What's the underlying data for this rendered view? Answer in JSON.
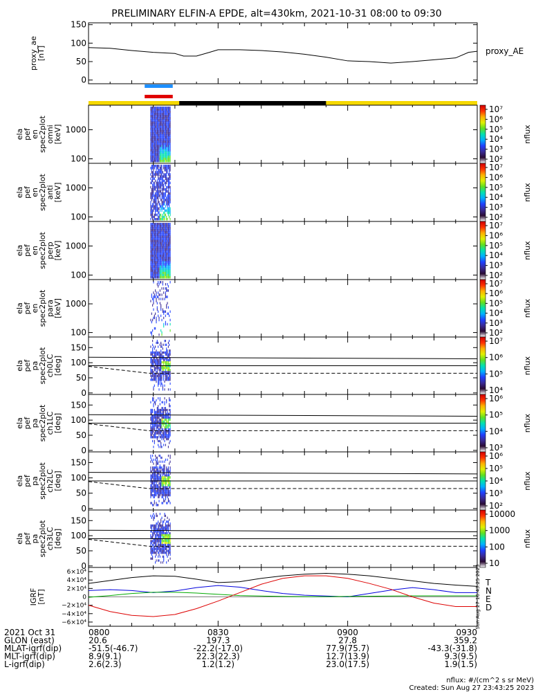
{
  "title": "PRELIMINARY ELFIN-A EPDE, alt=430km, 2021-10-31 08:00 to 09:30",
  "colors": {
    "bar_day": "#f5d800",
    "bar_night": "#000000",
    "marker_blue": "#1e8fff",
    "marker_red": "#e00000",
    "grf_T": "#000000",
    "grf_N": "#0000dd",
    "grf_E": "#00aa00",
    "grf_D": "#dd0000"
  },
  "colorbar_gradient": [
    "#ffffff",
    "#2a0a33",
    "#3a2a96",
    "#2040ff",
    "#00b0ff",
    "#00e0b0",
    "#60e020",
    "#e0f000",
    "#ffb000",
    "#ff3000",
    "#d00000"
  ],
  "chart_data": [
    {
      "type": "line",
      "panel": "proxy_ae",
      "ylabel": "proxy_ae\n[nT]",
      "legend": "proxy_AE",
      "ylim": [
        -10,
        155
      ],
      "yticks": [
        "150",
        "100",
        "50",
        "0"
      ],
      "x_minutes": [
        0,
        5,
        10,
        15,
        20,
        22,
        25,
        28,
        30,
        35,
        40,
        45,
        50,
        55,
        60,
        65,
        70,
        75,
        80,
        85,
        88,
        90
      ],
      "values": [
        88,
        86,
        80,
        75,
        72,
        65,
        65,
        75,
        82,
        82,
        80,
        76,
        70,
        62,
        52,
        50,
        46,
        50,
        55,
        60,
        75,
        78
      ]
    },
    {
      "type": "heatmap",
      "panel": "omni",
      "ylabel": "ela\npef\nen\nspec2plot\nomni\n[keV]",
      "yscale": "log",
      "ylim": [
        70,
        7000
      ],
      "yticks": [
        "1000",
        "100"
      ],
      "colorbar_ticks": [
        "10⁷",
        "10⁶",
        "10⁵",
        "10⁴",
        "10³",
        "10²"
      ],
      "colorbar_label": "nflux"
    },
    {
      "type": "heatmap",
      "panel": "anti",
      "ylabel": "ela\npef\nen\nspec2plot\nanti\n[keV]",
      "yscale": "log",
      "ylim": [
        70,
        7000
      ],
      "yticks": [
        "1000",
        "100"
      ],
      "colorbar_ticks": [
        "10⁷",
        "10⁶",
        "10⁵",
        "10⁴",
        "10³",
        "10²"
      ],
      "colorbar_label": "nflux"
    },
    {
      "type": "heatmap",
      "panel": "perp",
      "ylabel": "ela\npef\nen\nspec2plot\nperp\n[keV]",
      "yscale": "log",
      "ylim": [
        70,
        7000
      ],
      "yticks": [
        "1000",
        "100"
      ],
      "colorbar_ticks": [
        "10⁷",
        "10⁶",
        "10⁵",
        "10⁴",
        "10³",
        "10²"
      ],
      "colorbar_label": "nflux"
    },
    {
      "type": "heatmap",
      "panel": "para",
      "ylabel": "ela\npef\nen\nspec2plot\npara\n[keV]",
      "yscale": "log",
      "ylim": [
        70,
        7000
      ],
      "yticks": [
        "1000",
        "100"
      ],
      "colorbar_ticks": [
        "10⁷",
        "10⁶",
        "10⁵",
        "10⁴",
        "10³",
        "10²"
      ],
      "colorbar_label": "nflux"
    },
    {
      "type": "heatmap",
      "panel": "ch0LC",
      "ylabel": "ela\npef\npa\nspec2plot\nch0LC\n[deg]",
      "ylim": [
        -5,
        185
      ],
      "yticks": [
        "150",
        "100",
        "50",
        "0"
      ],
      "colorbar_ticks": [
        "10⁷",
        "10⁶",
        "10⁵",
        "10⁴"
      ],
      "colorbar_label": "nflux"
    },
    {
      "type": "heatmap",
      "panel": "ch1LC",
      "ylabel": "ela\npef\npa\nspec2plot\nch1LC\n[deg]",
      "ylim": [
        -5,
        185
      ],
      "yticks": [
        "150",
        "100",
        "50",
        "0"
      ],
      "colorbar_ticks": [
        "10⁶",
        "10⁵",
        "10⁴",
        "10³"
      ],
      "colorbar_label": "nflux"
    },
    {
      "type": "heatmap",
      "panel": "ch2LC",
      "ylabel": "ela\npef\npa\nspec2plot\nch2LC\n[deg]",
      "ylim": [
        -5,
        185
      ],
      "yticks": [
        "150",
        "100",
        "50",
        "0"
      ],
      "colorbar_ticks": [
        "10⁶",
        "10⁵",
        "10⁴",
        "10³",
        "10²"
      ],
      "colorbar_label": "nflux"
    },
    {
      "type": "heatmap",
      "panel": "ch3LC",
      "ylabel": "ela\npef\npa\nspec2plot\nch3LC\n[deg]",
      "ylim": [
        -5,
        185
      ],
      "yticks": [
        "150",
        "100",
        "50",
        "0"
      ],
      "colorbar_ticks": [
        "10000",
        "1000",
        "100",
        "10"
      ],
      "colorbar_label": "nflux"
    },
    {
      "type": "line",
      "panel": "igrf",
      "ylabel": "IGRF\n[nT]",
      "ylim": [
        -70000,
        70000
      ],
      "yticks": [
        "6×10⁴",
        "4×10⁴",
        "2×10⁴",
        "0",
        "−2×10⁴",
        "−4×10⁴",
        "−6×10⁴"
      ],
      "x_minutes": [
        0,
        5,
        10,
        15,
        20,
        25,
        30,
        35,
        40,
        45,
        50,
        55,
        60,
        65,
        70,
        75,
        80,
        85,
        90
      ],
      "series": [
        {
          "name": "T",
          "values": [
            32000,
            39000,
            46000,
            50000,
            49000,
            42000,
            34000,
            36000,
            44000,
            50000,
            54000,
            56000,
            54000,
            50000,
            44000,
            38000,
            32000,
            28000,
            25000
          ]
        },
        {
          "name": "N",
          "values": [
            15000,
            17000,
            15000,
            10000,
            14000,
            22000,
            27000,
            23000,
            15000,
            8000,
            4000,
            2000,
            0,
            8000,
            16000,
            22000,
            17000,
            10000,
            10000
          ]
        },
        {
          "name": "E",
          "values": [
            -1000,
            3000,
            8000,
            11000,
            11000,
            9000,
            6000,
            3000,
            2000,
            1000,
            500,
            500,
            1000,
            1500,
            2000,
            2500,
            2500,
            2500,
            2500
          ]
        },
        {
          "name": "D",
          "values": [
            -20000,
            -35000,
            -44000,
            -47000,
            -42000,
            -28000,
            -10000,
            10000,
            30000,
            44000,
            50000,
            50000,
            44000,
            32000,
            18000,
            0,
            -15000,
            -23000,
            -23000
          ]
        }
      ]
    }
  ],
  "spectro": {
    "x_minutes": [
      14,
      15,
      16,
      17,
      18,
      19,
      20
    ]
  },
  "timestamp_vertical": "Sun Aug 27 16:43:25 2023",
  "ephemeris": {
    "rows": [
      {
        "label": "2021 Oct 31",
        "v": [
          "0800",
          "0830",
          "0900",
          "0930"
        ]
      },
      {
        "label": "GLON (east)",
        "v": [
          "20.6",
          "197.3",
          "27.8",
          "359.2"
        ]
      },
      {
        "label": "MLAT-igrf(dip)",
        "v": [
          "-51.5(-46.7)",
          "-22.2(-17.0)",
          "77.9(75.7)",
          "-43.3(-31.8)"
        ]
      },
      {
        "label": "MLT-igrf(dip)",
        "v": [
          "8.9(9.1)",
          "22.3(22.3)",
          "12.7(13.9)",
          "9.3(9.5)"
        ]
      },
      {
        "label": "L-igrf(dip)",
        "v": [
          "2.6(2.3)",
          "1.2(1.2)",
          "23.0(17.5)",
          "1.9(1.5)"
        ]
      }
    ]
  },
  "footer": {
    "units": "nflux: #/(cm^2 s sr MeV)",
    "created": "Created: Sun Aug 27 23:43:25 2023"
  }
}
